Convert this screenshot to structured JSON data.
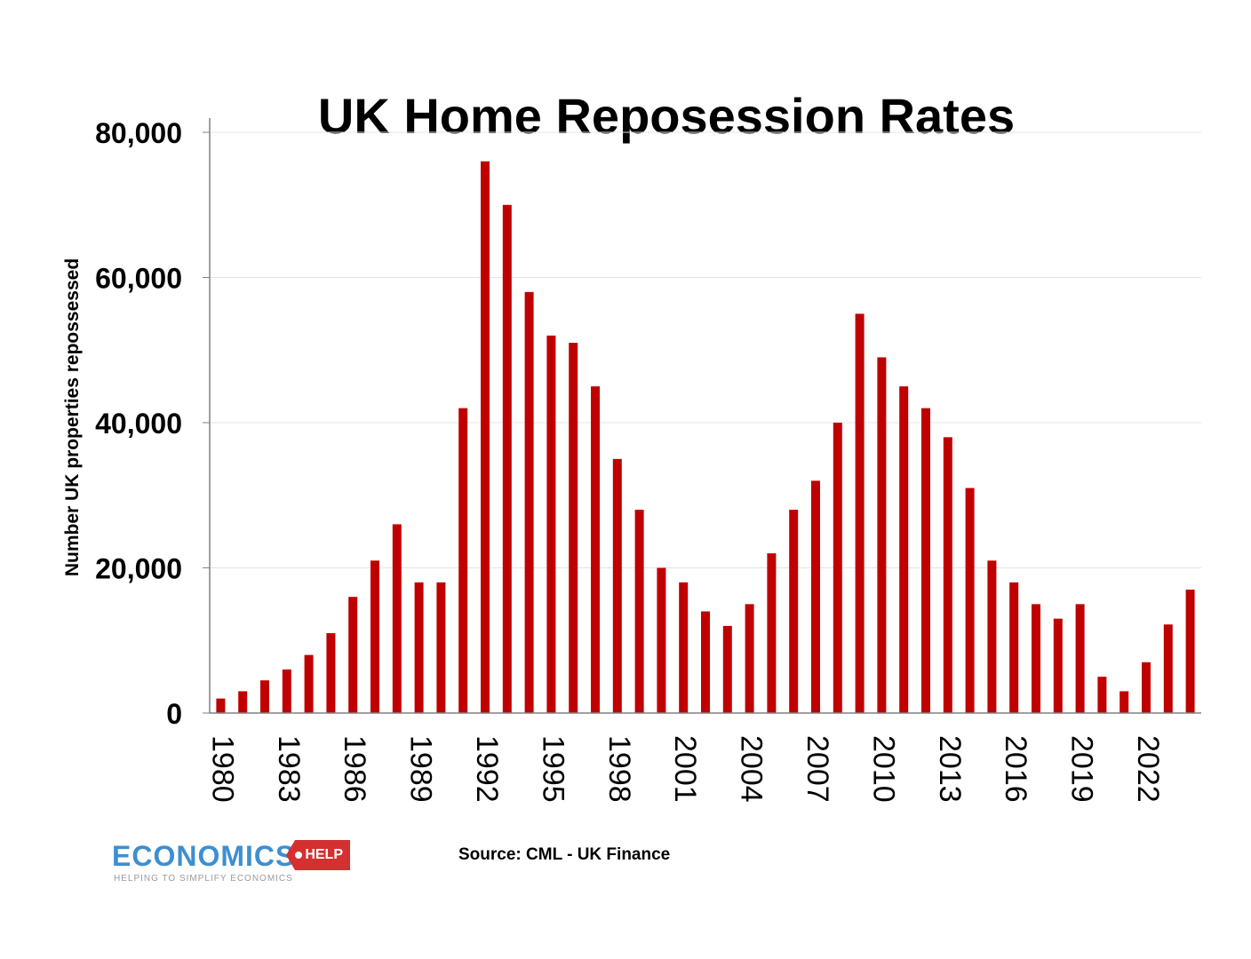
{
  "chart_data": {
    "type": "bar",
    "title": "UK Home Reposession Rates",
    "ylabel": "Number UK properties repossessed",
    "xlabel": "",
    "ylim": [
      0,
      80000
    ],
    "yticks": [
      "0",
      "20,000",
      "40,000",
      "60,000",
      "80,000"
    ],
    "ytick_values": [
      0,
      20000,
      40000,
      60000,
      80000
    ],
    "grid": true,
    "bar_color": "#c00000",
    "categories": [
      1980,
      1981,
      1982,
      1983,
      1984,
      1985,
      1986,
      1987,
      1988,
      1989,
      1990,
      1991,
      1992,
      1993,
      1994,
      1995,
      1996,
      1997,
      1998,
      1999,
      2000,
      2001,
      2002,
      2003,
      2004,
      2005,
      2006,
      2007,
      2008,
      2009,
      2010,
      2011,
      2012,
      2013,
      2014,
      2015,
      2016,
      2017,
      2018,
      2019,
      2020,
      2021,
      2022,
      2023,
      2024
    ],
    "xtick_labels": [
      "1980",
      "1983",
      "1986",
      "1989",
      "1992",
      "1995",
      "1998",
      "2001",
      "2004",
      "2007",
      "2010",
      "2013",
      "2016",
      "2019",
      "2022"
    ],
    "values": [
      2000,
      3000,
      4500,
      6000,
      8000,
      11000,
      16000,
      21000,
      26000,
      18000,
      18000,
      42000,
      76000,
      70000,
      58000,
      52000,
      51000,
      45000,
      35000,
      28000,
      20000,
      18000,
      14000,
      12000,
      15000,
      22000,
      28000,
      32000,
      40000,
      55000,
      49000,
      45000,
      42000,
      38000,
      31000,
      21000,
      18000,
      15000,
      13000,
      15000,
      5000,
      3000,
      7000,
      12200,
      17000
    ]
  },
  "source": "Source: CML - UK Finance",
  "logo": {
    "word": "ECONOMICS",
    "tag": "HELP",
    "tagline": "HELPING TO SIMPLIFY ECONOMICS"
  }
}
